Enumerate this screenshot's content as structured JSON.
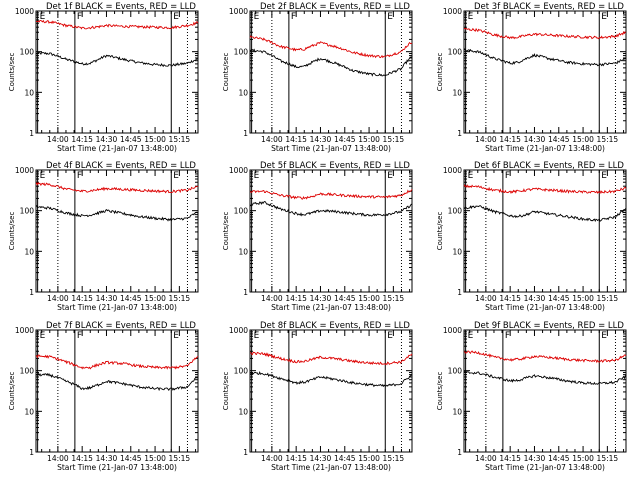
{
  "x_tick_labels": [
    "14:00",
    "14:15",
    "14:30",
    "14:45",
    "15:00",
    "15:15"
  ],
  "x_tick_minutes": [
    0,
    15,
    30,
    45,
    60,
    75
  ],
  "y_tick_labels": [
    "1",
    "10",
    "100",
    "1000"
  ],
  "colors": {
    "events": "#000000",
    "lld": "#dd0000"
  },
  "chart_data": [
    {
      "type": "line",
      "title": "Det 1f BLACK = Events, RED = LLD",
      "xlabel": "Start Time (21-Jan-07 13:48:00)",
      "ylabel": "Counts/sec",
      "x_range_minutes_after_14_00": [
        -13.5,
        86.5
      ],
      "y_range": [
        1,
        1000
      ],
      "y_scale": "log",
      "markers": [
        {
          "label": "E",
          "minute": -12.5
        },
        {
          "label": "F",
          "minute": 10.5
        },
        {
          "label": "E",
          "minute": 70
        }
      ],
      "dotted_lines_minutes": [
        0,
        80
      ],
      "x": [
        -13.5,
        -5,
        5,
        15,
        20,
        25,
        30,
        40,
        50,
        60,
        70,
        80,
        86.5
      ],
      "series": [
        {
          "name": "Events",
          "color": "#000000",
          "values": [
            92,
            90,
            65,
            50,
            52,
            64,
            80,
            65,
            54,
            48,
            46,
            52,
            66
          ]
        },
        {
          "name": "LLD",
          "color": "#dd0000",
          "values": [
            560,
            540,
            440,
            380,
            390,
            410,
            440,
            420,
            410,
            400,
            390,
            440,
            520
          ]
        }
      ]
    },
    {
      "type": "line",
      "title": "Det 2f BLACK = Events, RED = LLD",
      "xlabel": "Start Time (21-Jan-07 13:48:00)",
      "ylabel": "Counts/sec",
      "x_range_minutes_after_14_00": [
        -13.5,
        86.5
      ],
      "y_range": [
        1,
        1000
      ],
      "y_scale": "log",
      "markers": [
        {
          "label": "E",
          "minute": -12.5
        },
        {
          "label": "F",
          "minute": 10.5
        },
        {
          "label": "E",
          "minute": 70
        }
      ],
      "dotted_lines_minutes": [
        0,
        80
      ],
      "x": [
        -13.5,
        -5,
        5,
        15,
        20,
        25,
        30,
        40,
        50,
        60,
        70,
        80,
        86.5
      ],
      "series": [
        {
          "name": "Events",
          "color": "#000000",
          "values": [
            110,
            100,
            60,
            42,
            43,
            55,
            68,
            50,
            34,
            28,
            26,
            38,
            75
          ]
        },
        {
          "name": "LLD",
          "color": "#dd0000",
          "values": [
            230,
            200,
            135,
            110,
            115,
            140,
            165,
            130,
            95,
            80,
            75,
            100,
            175
          ]
        }
      ]
    },
    {
      "type": "line",
      "title": "Det 3f BLACK = Events, RED = LLD",
      "xlabel": "Start Time (21-Jan-07 13:48:00)",
      "ylabel": "Counts/sec",
      "x_range_minutes_after_14_00": [
        -13.5,
        86.5
      ],
      "y_range": [
        1,
        1000
      ],
      "y_scale": "log",
      "markers": [
        {
          "label": "E",
          "minute": -12.5
        },
        {
          "label": "F",
          "minute": 10.5
        },
        {
          "label": "E",
          "minute": 70
        }
      ],
      "dotted_lines_minutes": [
        0,
        80
      ],
      "x": [
        -13.5,
        -5,
        5,
        15,
        20,
        25,
        30,
        40,
        50,
        60,
        70,
        80,
        86.5
      ],
      "series": [
        {
          "name": "Events",
          "color": "#000000",
          "values": [
            110,
            100,
            68,
            52,
            55,
            68,
            82,
            66,
            55,
            50,
            48,
            52,
            68
          ]
        },
        {
          "name": "LLD",
          "color": "#dd0000",
          "values": [
            360,
            340,
            260,
            220,
            228,
            250,
            270,
            255,
            240,
            230,
            222,
            240,
            300
          ]
        }
      ]
    },
    {
      "type": "line",
      "title": "Det 4f BLACK = Events, RED = LLD",
      "xlabel": "Start Time (21-Jan-07 13:48:00)",
      "ylabel": "Counts/sec",
      "x_range_minutes_after_14_00": [
        -13.5,
        86.5
      ],
      "y_range": [
        1,
        1000
      ],
      "y_scale": "log",
      "markers": [
        {
          "label": "E",
          "minute": -12.5
        },
        {
          "label": "F",
          "minute": 10.5
        },
        {
          "label": "E",
          "minute": 70
        }
      ],
      "dotted_lines_minutes": [
        0,
        80
      ],
      "x": [
        -13.5,
        -5,
        5,
        15,
        20,
        25,
        30,
        40,
        50,
        60,
        70,
        80,
        86.5
      ],
      "series": [
        {
          "name": "Events",
          "color": "#000000",
          "values": [
            125,
            115,
            88,
            75,
            78,
            88,
            100,
            85,
            72,
            65,
            60,
            65,
            92
          ]
        },
        {
          "name": "LLD",
          "color": "#dd0000",
          "values": [
            460,
            440,
            340,
            300,
            310,
            330,
            350,
            335,
            318,
            305,
            295,
            320,
            390
          ]
        }
      ]
    },
    {
      "type": "line",
      "title": "Det 5f BLACK = Events, RED = LLD",
      "xlabel": "Start Time (21-Jan-07 13:48:00)",
      "ylabel": "Counts/sec",
      "x_range_minutes_after_14_00": [
        -13.5,
        86.5
      ],
      "y_range": [
        1,
        1000
      ],
      "y_scale": "log",
      "markers": [
        {
          "label": "E",
          "minute": -12.5
        },
        {
          "label": "F",
          "minute": 10.5
        },
        {
          "label": "E",
          "minute": 70
        }
      ],
      "dotted_lines_minutes": [
        0,
        80
      ],
      "x": [
        -13.5,
        -5,
        5,
        15,
        20,
        25,
        30,
        40,
        50,
        60,
        70,
        80,
        86.5
      ],
      "series": [
        {
          "name": "Events",
          "color": "#000000",
          "values": [
            140,
            160,
            110,
            85,
            80,
            88,
            100,
            95,
            85,
            78,
            80,
            95,
            140
          ]
        },
        {
          "name": "LLD",
          "color": "#dd0000",
          "values": [
            290,
            300,
            240,
            210,
            205,
            225,
            260,
            245,
            230,
            220,
            215,
            240,
            330
          ]
        }
      ]
    },
    {
      "type": "line",
      "title": "Det 6f BLACK = Events, RED = LLD",
      "xlabel": "Start Time (21-Jan-07 13:48:00)",
      "ylabel": "Counts/sec",
      "x_range_minutes_after_14_00": [
        -13.5,
        86.5
      ],
      "y_range": [
        1,
        1000
      ],
      "y_scale": "log",
      "markers": [
        {
          "label": "E",
          "minute": -12.5
        },
        {
          "label": "F",
          "minute": 10.5
        },
        {
          "label": "E",
          "minute": 70
        }
      ],
      "dotted_lines_minutes": [
        0,
        80
      ],
      "x": [
        -13.5,
        -5,
        5,
        15,
        20,
        25,
        30,
        40,
        50,
        60,
        70,
        80,
        86.5
      ],
      "series": [
        {
          "name": "Events",
          "color": "#000000",
          "values": [
            115,
            130,
            95,
            75,
            72,
            80,
            95,
            82,
            72,
            62,
            58,
            70,
            110
          ]
        },
        {
          "name": "LLD",
          "color": "#dd0000",
          "values": [
            400,
            390,
            320,
            290,
            300,
            320,
            340,
            320,
            300,
            288,
            282,
            300,
            360
          ]
        }
      ]
    },
    {
      "type": "line",
      "title": "Det 7f BLACK = Events, RED = LLD",
      "xlabel": "Start Time (21-Jan-07 13:48:00)",
      "ylabel": "Counts/sec",
      "x_range_minutes_after_14_00": [
        -13.5,
        86.5
      ],
      "y_range": [
        1,
        1000
      ],
      "y_scale": "log",
      "markers": [
        {
          "label": "E",
          "minute": -12.5
        },
        {
          "label": "F",
          "minute": 10.5
        },
        {
          "label": "E",
          "minute": 70
        }
      ],
      "dotted_lines_minutes": [
        0,
        80
      ],
      "x": [
        -13.5,
        -5,
        5,
        10,
        15,
        20,
        25,
        30,
        40,
        50,
        60,
        70,
        80,
        86.5
      ],
      "series": [
        {
          "name": "Events",
          "color": "#000000",
          "values": [
            80,
            78,
            55,
            46,
            36,
            38,
            45,
            55,
            48,
            40,
            36,
            35,
            40,
            70
          ]
        },
        {
          "name": "LLD",
          "color": "#dd0000",
          "values": [
            230,
            220,
            165,
            140,
            118,
            120,
            140,
            160,
            150,
            130,
            120,
            118,
            130,
            220
          ]
        }
      ]
    },
    {
      "type": "line",
      "title": "Det 8f BLACK = Events, RED = LLD",
      "xlabel": "Start Time (21-Jan-07 13:48:00)",
      "ylabel": "Counts/sec",
      "x_range_minutes_after_14_00": [
        -13.5,
        86.5
      ],
      "y_range": [
        1,
        1000
      ],
      "y_scale": "log",
      "markers": [
        {
          "label": "E",
          "minute": -12.5
        },
        {
          "label": "F",
          "minute": 10.5
        },
        {
          "label": "E",
          "minute": 70
        }
      ],
      "dotted_lines_minutes": [
        0,
        80
      ],
      "x": [
        -13.5,
        -5,
        5,
        15,
        20,
        25,
        30,
        40,
        50,
        60,
        70,
        80,
        86.5
      ],
      "series": [
        {
          "name": "Events",
          "color": "#000000",
          "values": [
            88,
            85,
            65,
            50,
            52,
            60,
            70,
            60,
            50,
            45,
            42,
            48,
            78
          ]
        },
        {
          "name": "LLD",
          "color": "#dd0000",
          "values": [
            270,
            260,
            200,
            165,
            170,
            190,
            215,
            195,
            170,
            155,
            150,
            165,
            250
          ]
        }
      ]
    },
    {
      "type": "line",
      "title": "Det 9f BLACK = Events, RED = LLD",
      "xlabel": "Start Time (21-Jan-07 13:48:00)",
      "ylabel": "Counts/sec",
      "x_range_minutes_after_14_00": [
        -13.5,
        86.5
      ],
      "y_range": [
        1,
        1000
      ],
      "y_scale": "log",
      "markers": [
        {
          "label": "E",
          "minute": -12.5
        },
        {
          "label": "F",
          "minute": 10.5
        },
        {
          "label": "E",
          "minute": 70
        }
      ],
      "dotted_lines_minutes": [
        0,
        80
      ],
      "x": [
        -13.5,
        -5,
        5,
        15,
        20,
        25,
        30,
        40,
        50,
        60,
        70,
        80,
        86.5
      ],
      "series": [
        {
          "name": "Events",
          "color": "#000000",
          "values": [
            90,
            88,
            70,
            56,
            58,
            66,
            75,
            66,
            56,
            50,
            48,
            52,
            72
          ]
        },
        {
          "name": "LLD",
          "color": "#dd0000",
          "values": [
            290,
            280,
            215,
            185,
            190,
            205,
            225,
            210,
            190,
            178,
            172,
            180,
            240
          ]
        }
      ]
    }
  ]
}
